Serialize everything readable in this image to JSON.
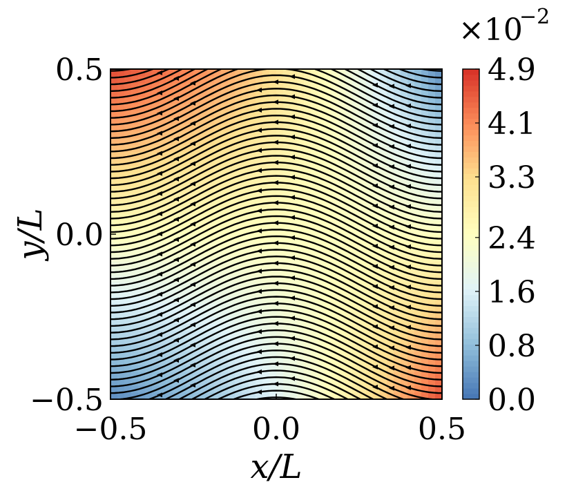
{
  "chart_data": {
    "type": "heatmap",
    "subtype": "streamplot over colored field",
    "x": {
      "label": "x/L",
      "range": [
        -0.5,
        0.5
      ],
      "ticks": [
        -0.5,
        0.0,
        0.5
      ],
      "tick_labels": [
        "−0.5",
        "0.0",
        "0.5"
      ]
    },
    "y": {
      "label": "y/L",
      "range": [
        -0.5,
        0.5
      ],
      "ticks": [
        -0.5,
        0.0,
        0.5
      ],
      "tick_labels": [
        "−0.5",
        "0.0",
        "0.5"
      ]
    },
    "colorbar": {
      "scale_label": "×10",
      "scale_exponent": "−2",
      "range": [
        0.0,
        4.9
      ],
      "ticks": [
        0.0,
        0.8,
        1.6,
        2.4,
        3.3,
        4.1,
        4.9
      ],
      "tick_labels": [
        "0.0",
        "0.8",
        "1.6",
        "2.4",
        "3.3",
        "4.1",
        "4.9"
      ],
      "colormap": "RdYlBu_r",
      "colors": [
        "#4575b4",
        "#91bfdb",
        "#e0f3f8",
        "#ffffbf",
        "#fee090",
        "#fc8d59",
        "#d73027"
      ]
    },
    "field": {
      "description_values": "speed magnitude, max near (-0.45,0.45) and (0.4,-0.45), min near (0.4,0.45) and (-0.4,-0.45)",
      "max": 4.9,
      "min": 0.0
    },
    "streamlines": {
      "color": "#000000",
      "arrow_direction": "leftward at top, sheared flow"
    }
  }
}
